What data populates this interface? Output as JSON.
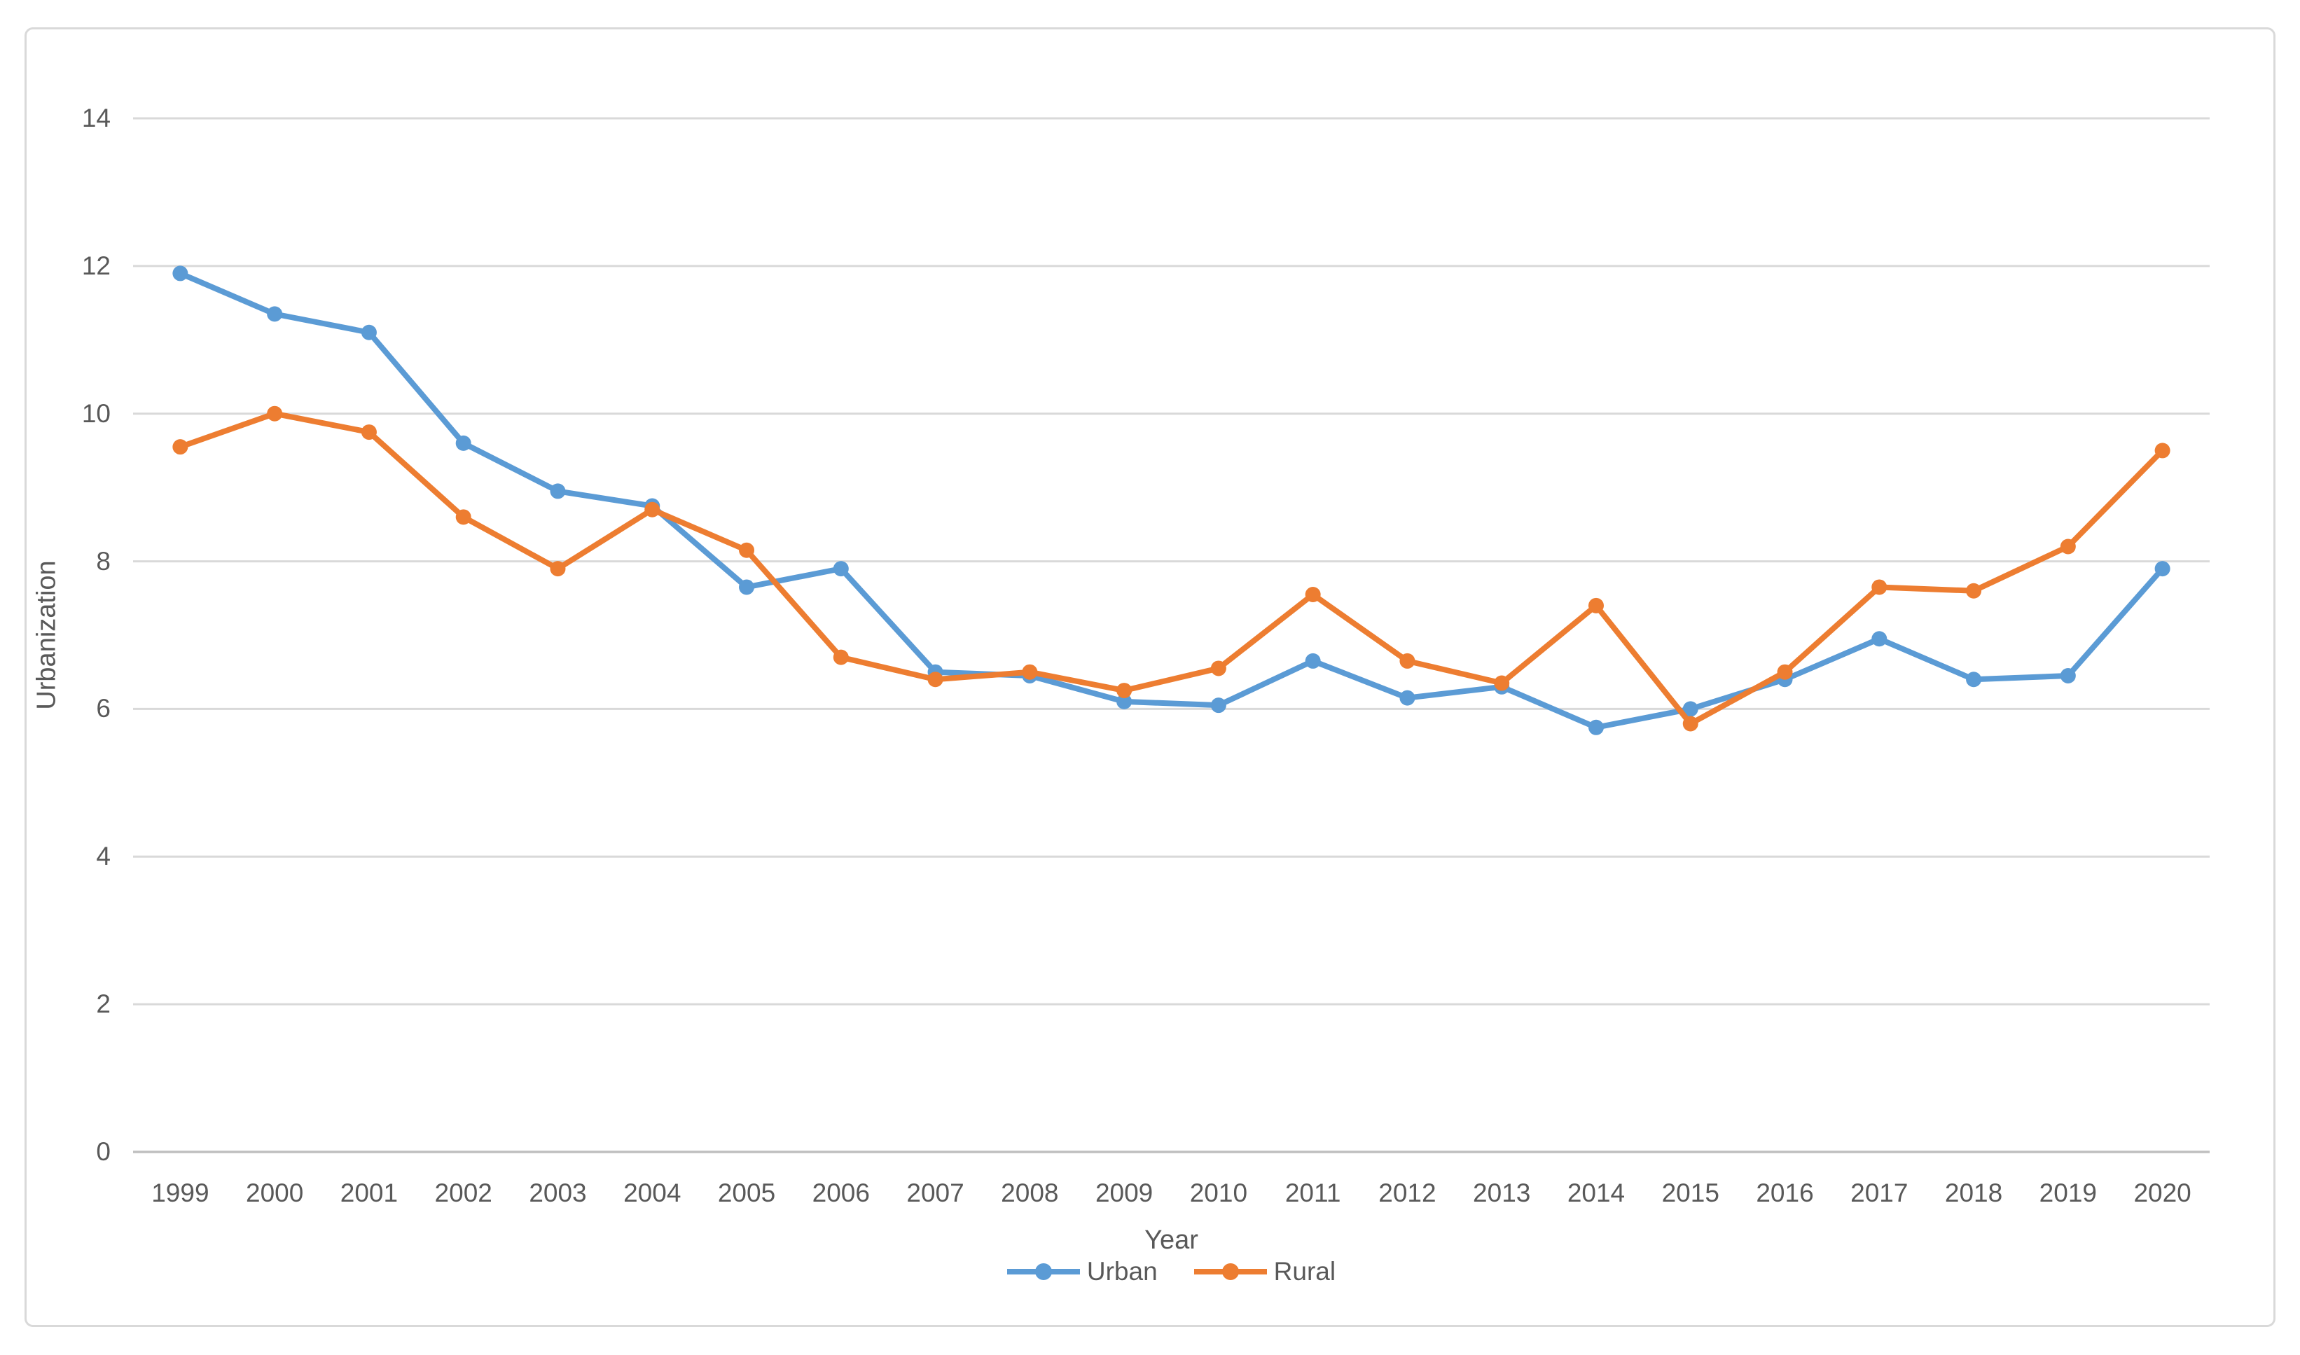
{
  "figure": {
    "background": "#ffffff",
    "border_color": "#d9d9d9",
    "gridline_color": "#d9d9d9",
    "axis_line_color": "#bfbfbf",
    "text_color": "#595959"
  },
  "chart_data": {
    "type": "line",
    "title": "",
    "xlabel": "Year",
    "ylabel": "Urbanization",
    "categories": [
      1999,
      2000,
      2001,
      2002,
      2003,
      2004,
      2005,
      2006,
      2007,
      2008,
      2009,
      2010,
      2011,
      2012,
      2013,
      2014,
      2015,
      2016,
      2017,
      2018,
      2019,
      2020
    ],
    "series": [
      {
        "name": "Urban",
        "color": "#5B9BD5",
        "marker": "circle",
        "values": [
          11.9,
          11.35,
          11.1,
          9.6,
          8.95,
          8.75,
          7.65,
          7.9,
          6.5,
          6.45,
          6.1,
          6.05,
          6.65,
          6.15,
          6.3,
          5.75,
          6.0,
          6.4,
          6.95,
          6.4,
          6.45,
          7.9
        ]
      },
      {
        "name": "Rural",
        "color": "#ED7D31",
        "marker": "circle",
        "values": [
          9.55,
          10.0,
          9.75,
          8.6,
          7.9,
          8.7,
          8.15,
          6.7,
          6.4,
          6.5,
          6.25,
          6.55,
          7.55,
          6.65,
          6.35,
          7.4,
          5.8,
          6.5,
          7.65,
          7.6,
          8.2,
          9.5
        ]
      }
    ],
    "ylim": [
      0,
      14
    ],
    "yticks": [
      0,
      2,
      4,
      6,
      8,
      10,
      12,
      14
    ],
    "grid": true,
    "legend_position": "bottom"
  }
}
